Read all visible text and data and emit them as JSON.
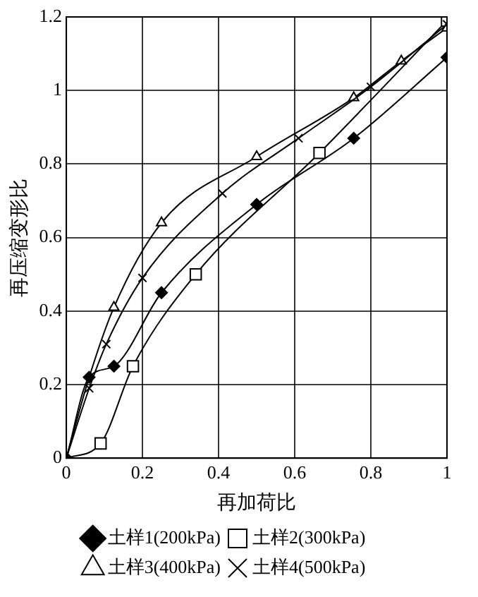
{
  "chart_data": {
    "type": "line",
    "xlabel": "再加荷比",
    "ylabel": "再压缩变形比",
    "xlim": [
      0,
      1
    ],
    "ylim": [
      0,
      1.2
    ],
    "xticks": [
      0,
      0.2,
      0.4,
      0.6,
      0.8,
      1
    ],
    "yticks": [
      0,
      0.2,
      0.4,
      0.6,
      0.8,
      1,
      1.2
    ],
    "grid": true,
    "legend": "bottom",
    "series": [
      {
        "name": "土样1(200kPa)",
        "color": "#000000",
        "marker": "diamond",
        "x": [
          0,
          0.06,
          0.125,
          0.25,
          0.5,
          0.755,
          1
        ],
        "values": [
          0,
          0.22,
          0.25,
          0.45,
          0.69,
          0.87,
          1.09
        ]
      },
      {
        "name": "土样2(300kPa)",
        "color": "#000000",
        "marker": "square",
        "x": [
          0,
          0.09,
          0.175,
          0.34,
          0.665,
          1
        ],
        "values": [
          0,
          0.04,
          0.25,
          0.5,
          0.83,
          1.19
        ]
      },
      {
        "name": "土样3(400kPa)",
        "color": "#000000",
        "marker": "triangle",
        "x": [
          0,
          0.06,
          0.125,
          0.25,
          0.5,
          0.755,
          0.88,
          1
        ],
        "values": [
          0,
          0.22,
          0.41,
          0.64,
          0.82,
          0.98,
          1.08,
          1.17
        ]
      },
      {
        "name": "土样4(500kPa)",
        "color": "#000000",
        "marker": "cross",
        "x": [
          0,
          0.06,
          0.105,
          0.2,
          0.41,
          0.61,
          0.8,
          1
        ],
        "values": [
          0,
          0.19,
          0.31,
          0.49,
          0.72,
          0.87,
          1.01,
          1.18
        ]
      }
    ]
  }
}
